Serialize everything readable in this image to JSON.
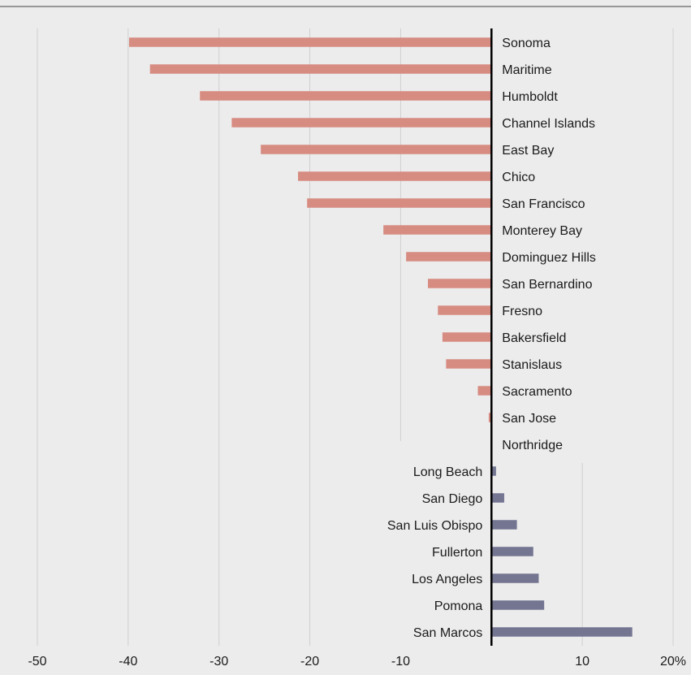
{
  "chart_data": {
    "type": "bar",
    "orientation": "horizontal",
    "title": "",
    "xlabel": "",
    "ylabel": "",
    "xlim": [
      -50,
      20
    ],
    "grid": true,
    "legend": "none",
    "colors": {
      "negative": "#d78c82",
      "positive": "#737591",
      "zero_line": "#000000",
      "grid": "#cfcfcf"
    },
    "x_ticks": [
      "-50",
      "-40",
      "-30",
      "-20",
      "-10",
      "10",
      "20%"
    ],
    "x_tick_values": [
      -50,
      -40,
      -30,
      -20,
      -10,
      10,
      20
    ],
    "categories": [
      "Sonoma",
      "Maritime",
      "Humboldt",
      "Channel Islands",
      "East Bay",
      "Chico",
      "San Francisco",
      "Monterey Bay",
      "Dominguez Hills",
      "San Bernardino",
      "Fresno",
      "Bakersfield",
      "Stanislaus",
      "Sacramento",
      "San Jose",
      "Northridge",
      "Long Beach",
      "San Diego",
      "San Luis Obispo",
      "Fullerton",
      "Los Angeles",
      "Pomona",
      "San Marcos"
    ],
    "values": [
      -39.9,
      -37.6,
      -32.1,
      -28.6,
      -25.4,
      -21.3,
      -20.3,
      -11.9,
      -9.4,
      -7.0,
      -5.9,
      -5.4,
      -5.0,
      -1.5,
      -0.3,
      0.0,
      0.5,
      1.4,
      2.8,
      4.6,
      5.2,
      5.8,
      15.5
    ]
  }
}
